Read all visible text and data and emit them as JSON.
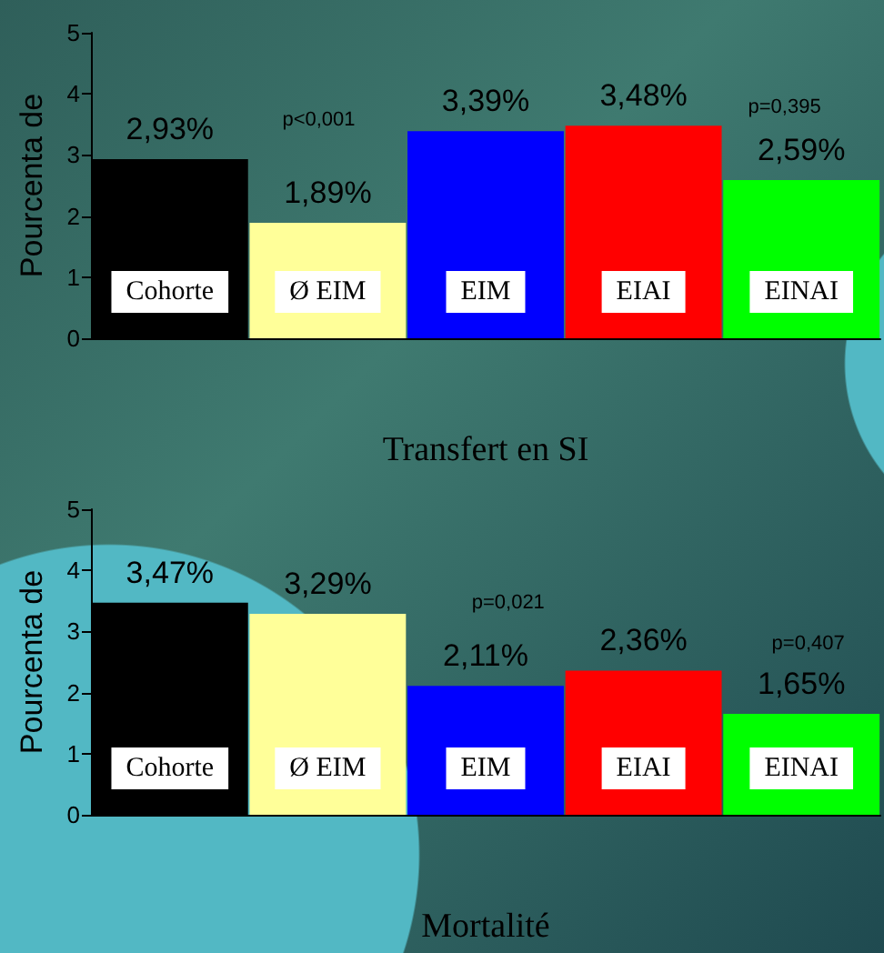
{
  "chart_data": [
    {
      "type": "bar",
      "xlabel": "Transfert en SI",
      "ylabel": "Pourcenta de",
      "categories": [
        "Cohorte",
        "Ø EIM",
        "EIM",
        "EIAI",
        "EINAI"
      ],
      "values": [
        2.93,
        1.89,
        3.39,
        3.48,
        2.59
      ],
      "value_labels": [
        "2,93%",
        "1,89%",
        "3,39%",
        "3,48%",
        "2,59%"
      ],
      "colors": [
        "#000000",
        "#ffff99",
        "#0000ff",
        "#ff0000",
        "#00ff00"
      ],
      "ylim": [
        0,
        5
      ],
      "yticks": [
        0,
        1,
        2,
        3,
        4,
        5
      ],
      "grid": false,
      "annotations": [
        "p<0,001",
        "p=0,395"
      ]
    },
    {
      "type": "bar",
      "xlabel": "Mortalité",
      "ylabel": "Pourcenta de",
      "categories": [
        "Cohorte",
        "Ø EIM",
        "EIM",
        "EIAI",
        "EINAI"
      ],
      "values": [
        3.47,
        3.29,
        2.11,
        2.36,
        1.65
      ],
      "value_labels": [
        "3,47%",
        "3,29%",
        "2,11%",
        "2,36%",
        "1,65%"
      ],
      "colors": [
        "#000000",
        "#ffff99",
        "#0000ff",
        "#ff0000",
        "#00ff00"
      ],
      "ylim": [
        0,
        5
      ],
      "yticks": [
        0,
        1,
        2,
        3,
        4,
        5
      ],
      "grid": false,
      "annotations": [
        "p=0,021",
        "p=0,407"
      ]
    }
  ]
}
